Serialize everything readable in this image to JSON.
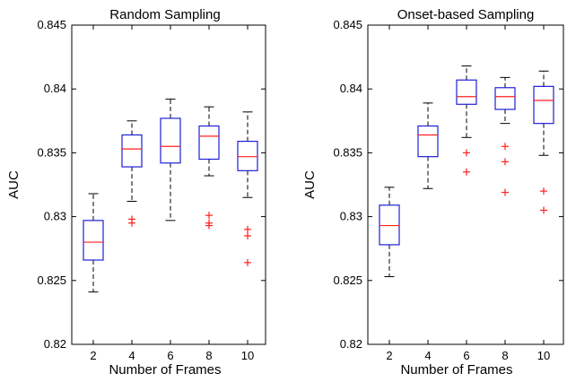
{
  "chart_data": [
    {
      "type": "box",
      "title": "Random Sampling",
      "xlabel": "Number of Frames",
      "ylabel": "AUC",
      "ylim": [
        0.82,
        0.845
      ],
      "yticks": [
        "0.82",
        "0.825",
        "0.83",
        "0.835",
        "0.84",
        "0.845"
      ],
      "categories": [
        "2",
        "4",
        "6",
        "8",
        "10"
      ],
      "boxes": [
        {
          "category": "2",
          "whisker_low": 0.8241,
          "q1": 0.8266,
          "median": 0.828,
          "q3": 0.8297,
          "whisker_high": 0.8318,
          "outliers": []
        },
        {
          "category": "4",
          "whisker_low": 0.8312,
          "q1": 0.8339,
          "median": 0.8353,
          "q3": 0.8364,
          "whisker_high": 0.8375,
          "outliers": [
            0.8295,
            0.8298
          ]
        },
        {
          "category": "6",
          "whisker_low": 0.8297,
          "q1": 0.8342,
          "median": 0.8355,
          "q3": 0.8377,
          "whisker_high": 0.8392,
          "outliers": []
        },
        {
          "category": "8",
          "whisker_low": 0.8332,
          "q1": 0.8345,
          "median": 0.8363,
          "q3": 0.8371,
          "whisker_high": 0.8386,
          "outliers": [
            0.8293,
            0.8295,
            0.8301
          ]
        },
        {
          "category": "10",
          "whisker_low": 0.8315,
          "q1": 0.8336,
          "median": 0.8347,
          "q3": 0.8359,
          "whisker_high": 0.8382,
          "outliers": [
            0.8264,
            0.8285,
            0.829
          ]
        }
      ],
      "colors": {
        "box": "#1f1fd6",
        "median": "#ff2020",
        "outlier": "#ff2020",
        "whisker": "#000000"
      }
    },
    {
      "type": "box",
      "title": "Onset-based Sampling",
      "xlabel": "Number of Frames",
      "ylabel": "AUC",
      "ylim": [
        0.82,
        0.845
      ],
      "yticks": [
        "0.82",
        "0.825",
        "0.83",
        "0.835",
        "0.84",
        "0.845"
      ],
      "categories": [
        "2",
        "4",
        "6",
        "8",
        "10"
      ],
      "boxes": [
        {
          "category": "2",
          "whisker_low": 0.8253,
          "q1": 0.8278,
          "median": 0.8293,
          "q3": 0.8309,
          "whisker_high": 0.8323,
          "outliers": []
        },
        {
          "category": "4",
          "whisker_low": 0.8322,
          "q1": 0.8347,
          "median": 0.8364,
          "q3": 0.8371,
          "whisker_high": 0.8389,
          "outliers": []
        },
        {
          "category": "6",
          "whisker_low": 0.8362,
          "q1": 0.8388,
          "median": 0.8394,
          "q3": 0.8407,
          "whisker_high": 0.8418,
          "outliers": [
            0.8335,
            0.835
          ]
        },
        {
          "category": "8",
          "whisker_low": 0.8373,
          "q1": 0.8384,
          "median": 0.8394,
          "q3": 0.8401,
          "whisker_high": 0.8409,
          "outliers": [
            0.8319,
            0.8343,
            0.8355
          ]
        },
        {
          "category": "10",
          "whisker_low": 0.8348,
          "q1": 0.8373,
          "median": 0.8391,
          "q3": 0.8402,
          "whisker_high": 0.8414,
          "outliers": [
            0.8305,
            0.832
          ]
        }
      ],
      "colors": {
        "box": "#1f1fd6",
        "median": "#ff2020",
        "outlier": "#ff2020",
        "whisker": "#000000"
      }
    }
  ]
}
